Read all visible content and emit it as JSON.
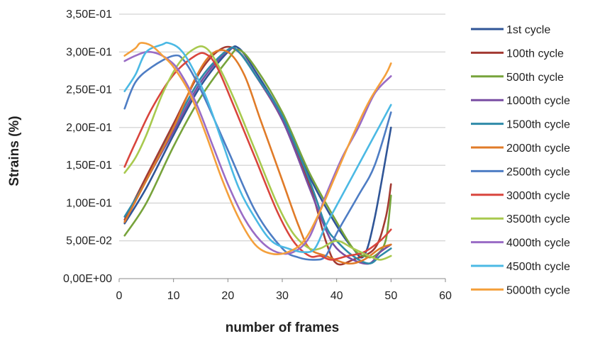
{
  "chart_data": {
    "type": "line",
    "title": "",
    "xlabel": "number of frames",
    "ylabel": "Strains (%)",
    "xlim": [
      0,
      60
    ],
    "ylim": [
      0,
      0.35
    ],
    "x_ticks": [
      0,
      10,
      20,
      30,
      40,
      50,
      60
    ],
    "x_tick_labels": [
      "0",
      "10",
      "20",
      "30",
      "40",
      "50",
      "60"
    ],
    "y_ticks": [
      0,
      0.05,
      0.1,
      0.15,
      0.2,
      0.25,
      0.3,
      0.35
    ],
    "y_tick_labels": [
      "0,00E+00",
      "5,00E-02",
      "1,00E-01",
      "1,50E-01",
      "2,00E-01",
      "2,50E-01",
      "3,00E-01",
      "3,50E-01"
    ],
    "grid": "horizontal",
    "legend_position": "right",
    "series": [
      {
        "name": "1st cycle",
        "color": "#2f5597",
        "points": [
          [
            1,
            0.073
          ],
          [
            5,
            0.12
          ],
          [
            10,
            0.19
          ],
          [
            15,
            0.255
          ],
          [
            20,
            0.3
          ],
          [
            22,
            0.305
          ],
          [
            25,
            0.275
          ],
          [
            30,
            0.215
          ],
          [
            35,
            0.135
          ],
          [
            40,
            0.07
          ],
          [
            43,
            0.04
          ],
          [
            45,
            0.03
          ],
          [
            47,
            0.08
          ],
          [
            50,
            0.2
          ]
        ]
      },
      {
        "name": "100th cycle",
        "color": "#a33a32",
        "points": [
          [
            1,
            0.078
          ],
          [
            5,
            0.135
          ],
          [
            10,
            0.205
          ],
          [
            15,
            0.275
          ],
          [
            19,
            0.305
          ],
          [
            22,
            0.3
          ],
          [
            25,
            0.27
          ],
          [
            30,
            0.21
          ],
          [
            35,
            0.125
          ],
          [
            38,
            0.05
          ],
          [
            40,
            0.02
          ],
          [
            43,
            0.025
          ],
          [
            47,
            0.04
          ],
          [
            49,
            0.08
          ],
          [
            50,
            0.125
          ]
        ]
      },
      {
        "name": "500th cycle",
        "color": "#77a33b",
        "points": [
          [
            1,
            0.057
          ],
          [
            5,
            0.1
          ],
          [
            10,
            0.175
          ],
          [
            15,
            0.24
          ],
          [
            20,
            0.29
          ],
          [
            22,
            0.303
          ],
          [
            25,
            0.28
          ],
          [
            30,
            0.22
          ],
          [
            35,
            0.14
          ],
          [
            40,
            0.075
          ],
          [
            43,
            0.04
          ],
          [
            45,
            0.03
          ],
          [
            47,
            0.03
          ],
          [
            49,
            0.05
          ],
          [
            50,
            0.11
          ]
        ]
      },
      {
        "name": "1000th cycle",
        "color": "#7a4ea3",
        "points": [
          [
            1,
            0.075
          ],
          [
            5,
            0.13
          ],
          [
            10,
            0.195
          ],
          [
            15,
            0.26
          ],
          [
            20,
            0.302
          ],
          [
            22,
            0.3
          ],
          [
            25,
            0.27
          ],
          [
            30,
            0.21
          ],
          [
            35,
            0.12
          ],
          [
            38,
            0.065
          ],
          [
            40,
            0.04
          ],
          [
            43,
            0.025
          ],
          [
            46,
            0.02
          ],
          [
            48,
            0.035
          ],
          [
            50,
            0.045
          ]
        ]
      },
      {
        "name": "1500th cycle",
        "color": "#2e8aa8",
        "points": [
          [
            1,
            0.082
          ],
          [
            5,
            0.13
          ],
          [
            10,
            0.2
          ],
          [
            15,
            0.265
          ],
          [
            20,
            0.303
          ],
          [
            22,
            0.3
          ],
          [
            25,
            0.27
          ],
          [
            30,
            0.215
          ],
          [
            35,
            0.13
          ],
          [
            38,
            0.07
          ],
          [
            40,
            0.05
          ],
          [
            43,
            0.03
          ],
          [
            46,
            0.02
          ],
          [
            48,
            0.03
          ],
          [
            50,
            0.04
          ]
        ]
      },
      {
        "name": "2000th cycle",
        "color": "#e07b28",
        "points": [
          [
            1,
            0.075
          ],
          [
            5,
            0.13
          ],
          [
            10,
            0.2
          ],
          [
            14,
            0.265
          ],
          [
            17,
            0.297
          ],
          [
            20,
            0.3
          ],
          [
            23,
            0.27
          ],
          [
            26,
            0.21
          ],
          [
            30,
            0.13
          ],
          [
            33,
            0.07
          ],
          [
            35,
            0.04
          ],
          [
            38,
            0.03
          ],
          [
            42,
            0.02
          ],
          [
            45,
            0.025
          ],
          [
            48,
            0.04
          ],
          [
            50,
            0.045
          ]
        ]
      },
      {
        "name": "2500th cycle",
        "color": "#4e7dc4",
        "points": [
          [
            1,
            0.225
          ],
          [
            3,
            0.26
          ],
          [
            6,
            0.28
          ],
          [
            10,
            0.295
          ],
          [
            12,
            0.288
          ],
          [
            15,
            0.25
          ],
          [
            20,
            0.17
          ],
          [
            25,
            0.09
          ],
          [
            30,
            0.04
          ],
          [
            33,
            0.028
          ],
          [
            36,
            0.025
          ],
          [
            38,
            0.03
          ],
          [
            40,
            0.06
          ],
          [
            44,
            0.11
          ],
          [
            47,
            0.15
          ],
          [
            50,
            0.22
          ]
        ]
      },
      {
        "name": "3000th cycle",
        "color": "#d9453d",
        "points": [
          [
            1,
            0.148
          ],
          [
            3,
            0.18
          ],
          [
            6,
            0.225
          ],
          [
            10,
            0.27
          ],
          [
            14,
            0.295
          ],
          [
            16,
            0.297
          ],
          [
            18,
            0.28
          ],
          [
            21,
            0.23
          ],
          [
            25,
            0.16
          ],
          [
            29,
            0.09
          ],
          [
            32,
            0.05
          ],
          [
            35,
            0.03
          ],
          [
            37,
            0.03
          ],
          [
            39,
            0.025
          ],
          [
            42,
            0.03
          ],
          [
            45,
            0.035
          ],
          [
            48,
            0.05
          ],
          [
            50,
            0.065
          ]
        ]
      },
      {
        "name": "3500th cycle",
        "color": "#a8c94e",
        "points": [
          [
            1,
            0.14
          ],
          [
            3,
            0.16
          ],
          [
            5,
            0.19
          ],
          [
            8,
            0.245
          ],
          [
            11,
            0.285
          ],
          [
            14,
            0.305
          ],
          [
            16,
            0.305
          ],
          [
            18,
            0.285
          ],
          [
            21,
            0.24
          ],
          [
            25,
            0.17
          ],
          [
            29,
            0.1
          ],
          [
            32,
            0.06
          ],
          [
            35,
            0.04
          ],
          [
            37,
            0.04
          ],
          [
            40,
            0.05
          ],
          [
            43,
            0.04
          ],
          [
            46,
            0.03
          ],
          [
            48,
            0.025
          ],
          [
            50,
            0.03
          ]
        ]
      },
      {
        "name": "4000th cycle",
        "color": "#9a6cc5",
        "points": [
          [
            1,
            0.288
          ],
          [
            3,
            0.295
          ],
          [
            5,
            0.3
          ],
          [
            7,
            0.298
          ],
          [
            9,
            0.29
          ],
          [
            11,
            0.275
          ],
          [
            14,
            0.235
          ],
          [
            17,
            0.18
          ],
          [
            20,
            0.125
          ],
          [
            23,
            0.08
          ],
          [
            26,
            0.05
          ],
          [
            29,
            0.035
          ],
          [
            32,
            0.035
          ],
          [
            35,
            0.055
          ],
          [
            38,
            0.11
          ],
          [
            41,
            0.16
          ],
          [
            44,
            0.2
          ],
          [
            47,
            0.245
          ],
          [
            50,
            0.268
          ]
        ]
      },
      {
        "name": "4500th cycle",
        "color": "#4bb9e4",
        "points": [
          [
            1,
            0.248
          ],
          [
            3,
            0.27
          ],
          [
            5,
            0.3
          ],
          [
            8,
            0.31
          ],
          [
            9,
            0.312
          ],
          [
            11,
            0.305
          ],
          [
            13,
            0.285
          ],
          [
            16,
            0.24
          ],
          [
            19,
            0.18
          ],
          [
            22,
            0.12
          ],
          [
            25,
            0.08
          ],
          [
            28,
            0.05
          ],
          [
            31,
            0.04
          ],
          [
            34,
            0.035
          ],
          [
            36,
            0.04
          ],
          [
            38,
            0.07
          ],
          [
            41,
            0.11
          ],
          [
            44,
            0.15
          ],
          [
            47,
            0.19
          ],
          [
            50,
            0.23
          ]
        ]
      },
      {
        "name": "5000th cycle",
        "color": "#f4a03c",
        "points": [
          [
            1,
            0.295
          ],
          [
            3,
            0.305
          ],
          [
            4,
            0.312
          ],
          [
            6,
            0.308
          ],
          [
            8,
            0.295
          ],
          [
            10,
            0.28
          ],
          [
            13,
            0.245
          ],
          [
            16,
            0.19
          ],
          [
            19,
            0.13
          ],
          [
            22,
            0.08
          ],
          [
            25,
            0.045
          ],
          [
            28,
            0.033
          ],
          [
            31,
            0.035
          ],
          [
            34,
            0.05
          ],
          [
            37,
            0.09
          ],
          [
            40,
            0.14
          ],
          [
            43,
            0.19
          ],
          [
            46,
            0.235
          ],
          [
            49,
            0.27
          ],
          [
            50,
            0.285
          ]
        ]
      }
    ]
  }
}
